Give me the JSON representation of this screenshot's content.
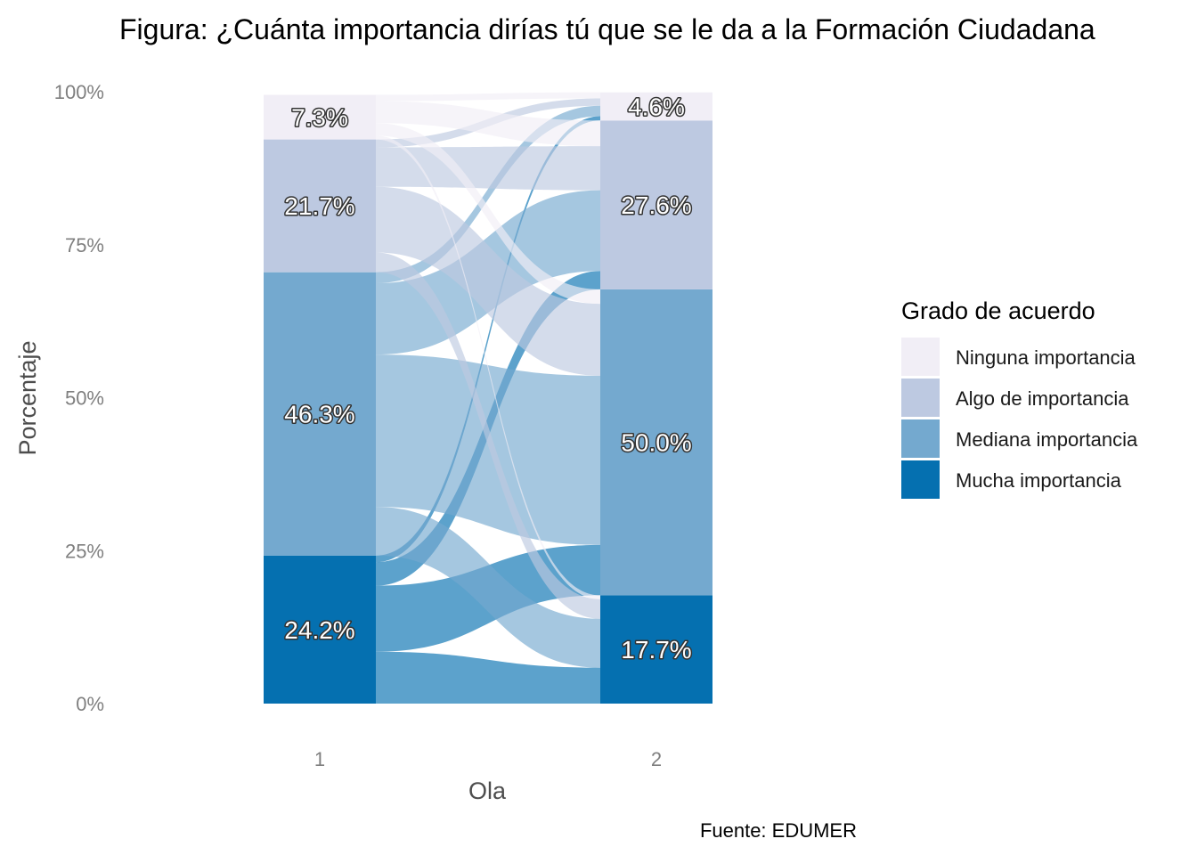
{
  "chart_data": {
    "type": "alluvial",
    "title": "Figura: ¿Cuánta importancia dirías tú que se le da a la Formación Ciudadana",
    "xlabel": "Ola",
    "ylabel": "Porcentaje",
    "caption": "Fuente: EDUMER",
    "x_categories": [
      "1",
      "2"
    ],
    "y_ticks": [
      "0%",
      "25%",
      "50%",
      "75%",
      "100%"
    ],
    "ylim": [
      0,
      100
    ],
    "legend": {
      "title": "Grado de acuerdo",
      "placement": "right",
      "items": [
        {
          "key": "ninguna",
          "label": "Ninguna importancia",
          "color": "#f1eef6"
        },
        {
          "key": "algo",
          "label": "Algo de importancia",
          "color": "#bdc9e1"
        },
        {
          "key": "mediana",
          "label": "Mediana importancia",
          "color": "#74a9cf"
        },
        {
          "key": "mucha",
          "label": "Mucha importancia",
          "color": "#0570b0"
        }
      ]
    },
    "stacks": [
      {
        "ola": "1",
        "segments": [
          {
            "key": "mucha",
            "value": 24.2,
            "label": "24.2%"
          },
          {
            "key": "mediana",
            "value": 46.3,
            "label": "46.3%"
          },
          {
            "key": "algo",
            "value": 21.7,
            "label": "21.7%"
          },
          {
            "key": "ninguna",
            "value": 7.3,
            "label": "7.3%"
          }
        ]
      },
      {
        "ola": "2",
        "segments": [
          {
            "key": "mucha",
            "value": 17.7,
            "label": "17.7%"
          },
          {
            "key": "mediana",
            "value": 50.0,
            "label": "50.0%"
          },
          {
            "key": "algo",
            "value": 27.6,
            "label": "27.6%"
          },
          {
            "key": "ninguna",
            "value": 4.6,
            "label": "4.6%"
          }
        ]
      }
    ],
    "flows": [
      {
        "from": "mucha",
        "to": "mucha",
        "value": 5.5
      },
      {
        "from": "mucha",
        "to": "mediana",
        "value": 7.0
      },
      {
        "from": "mucha",
        "to": "algo",
        "value": 2.5
      },
      {
        "from": "mucha",
        "to": "ninguna",
        "value": 0.7
      },
      {
        "from": "mediana",
        "to": "mucha",
        "value": 7.5
      },
      {
        "from": "mediana",
        "to": "mediana",
        "value": 23.5
      },
      {
        "from": "mediana",
        "to": "algo",
        "value": 11.0
      },
      {
        "from": "mediana",
        "to": "ninguna",
        "value": 1.7
      },
      {
        "from": "algo",
        "to": "mucha",
        "value": 3.0
      },
      {
        "from": "algo",
        "to": "mediana",
        "value": 10.0
      },
      {
        "from": "algo",
        "to": "algo",
        "value": 6.0
      },
      {
        "from": "algo",
        "to": "ninguna",
        "value": 1.2
      },
      {
        "from": "ninguna",
        "to": "mucha",
        "value": 0.6
      },
      {
        "from": "ninguna",
        "to": "mediana",
        "value": 2.0
      },
      {
        "from": "ninguna",
        "to": "algo",
        "value": 3.5
      },
      {
        "from": "ninguna",
        "to": "ninguna",
        "value": 1.0
      }
    ]
  }
}
